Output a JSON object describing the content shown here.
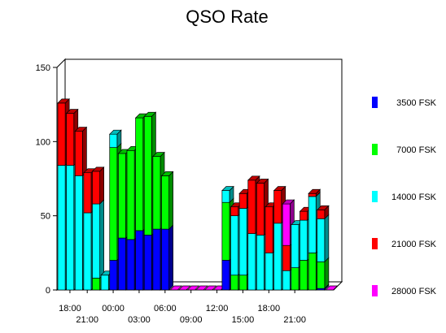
{
  "chart_data": {
    "type": "bar",
    "stacked": true,
    "three_d": true,
    "title": "QSO Rate",
    "xlabel": "",
    "ylabel": "",
    "ylim": [
      0,
      150
    ],
    "yticks": [
      0,
      50,
      100,
      150
    ],
    "grid": false,
    "legend_position": "right",
    "x_tick_labels": [
      {
        "index": 1,
        "label": "18:00",
        "row": 1
      },
      {
        "index": 3,
        "label": "21:00",
        "row": 2
      },
      {
        "index": 6,
        "label": "00:00",
        "row": 1
      },
      {
        "index": 9,
        "label": "03:00",
        "row": 2
      },
      {
        "index": 12,
        "label": "06:00",
        "row": 1
      },
      {
        "index": 15,
        "label": "09:00",
        "row": 2
      },
      {
        "index": 18,
        "label": "12:00",
        "row": 1
      },
      {
        "index": 21,
        "label": "15:00",
        "row": 2
      },
      {
        "index": 24,
        "label": "18:00",
        "row": 1
      },
      {
        "index": 27,
        "label": "21:00",
        "row": 2
      }
    ],
    "series": [
      {
        "name": "3500 FSK",
        "color": "#0000ff",
        "values": [
          0,
          0,
          0,
          0,
          0,
          0,
          20,
          35,
          34,
          40,
          37,
          41,
          41,
          0,
          0,
          0,
          0,
          0,
          0,
          20,
          0,
          0,
          0,
          0,
          0,
          0,
          0,
          0,
          0,
          0,
          1,
          0
        ]
      },
      {
        "name": "7000 FSK",
        "color": "#00ff00",
        "values": [
          0,
          0,
          0,
          0,
          8,
          0,
          76,
          57,
          60,
          76,
          80,
          49,
          36,
          0,
          0,
          0,
          0,
          0,
          0,
          39,
          10,
          10,
          0,
          0,
          0,
          0,
          0,
          15,
          20,
          25,
          18,
          0
        ]
      },
      {
        "name": "14000 FSK",
        "color": "#00ffff",
        "values": [
          84,
          84,
          77,
          52,
          50,
          10,
          9,
          0,
          0,
          0,
          0,
          0,
          0,
          0,
          0,
          0,
          0,
          0,
          0,
          8,
          40,
          45,
          38,
          37,
          25,
          45,
          13,
          29,
          27,
          38,
          29,
          0
        ]
      },
      {
        "name": "21000 FSK",
        "color": "#ff0000",
        "values": [
          42,
          35,
          30,
          27,
          22,
          0,
          0,
          0,
          0,
          0,
          0,
          0,
          0,
          0,
          0,
          0,
          0,
          0,
          0,
          0,
          6,
          10,
          36,
          35,
          31,
          22,
          17,
          0,
          6,
          2,
          6,
          0
        ]
      },
      {
        "name": "28000 FSK",
        "color": "#ff00ff",
        "values": [
          0,
          0,
          0,
          0,
          0,
          0,
          0,
          0,
          0,
          0,
          0,
          0,
          0,
          0,
          0,
          0,
          0,
          0,
          0,
          0,
          0,
          0,
          0,
          0,
          0,
          0,
          28,
          0,
          0,
          0,
          0,
          0
        ]
      }
    ]
  }
}
